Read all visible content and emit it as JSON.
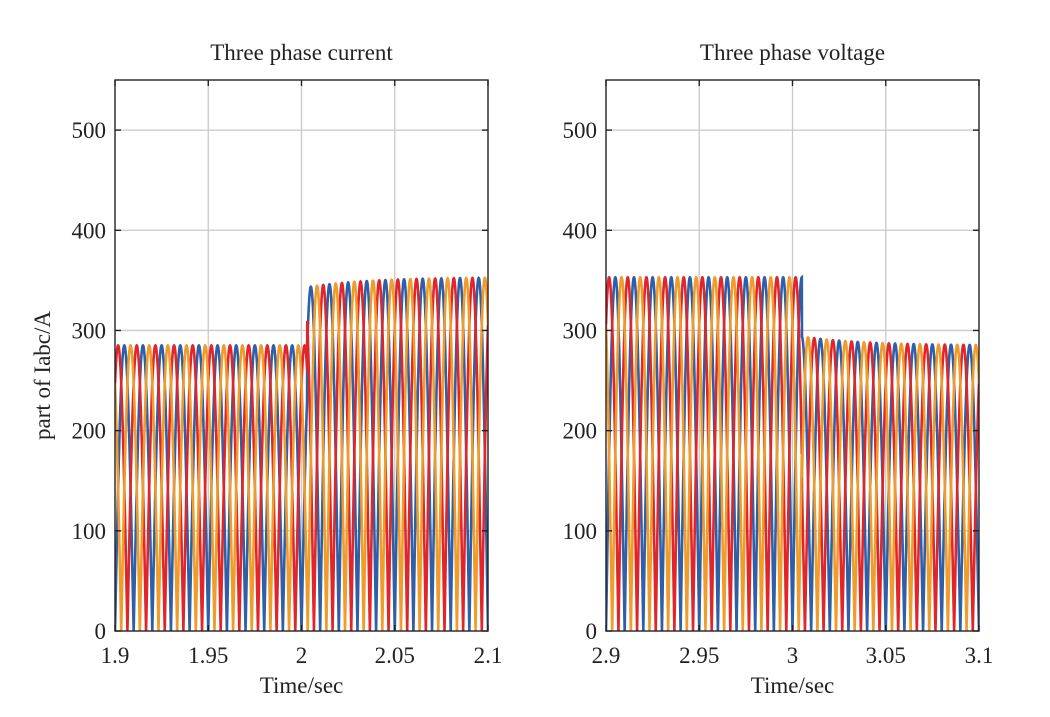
{
  "colors": {
    "phase_a": "#2f5fa6",
    "phase_b": "#e0262a",
    "phase_c": "#f09c2b",
    "grid": "#c9c9c9",
    "axes": "#222222"
  },
  "chart_data": [
    {
      "type": "line",
      "title": "Three phase current",
      "xlabel": "Time/sec",
      "ylabel": "part of Iabc/A",
      "xlim": [
        1.9,
        2.1
      ],
      "ylim": [
        0,
        550
      ],
      "xticks": [
        1.9,
        1.95,
        2.0,
        2.05,
        2.1
      ],
      "xtick_labels": [
        "1.9",
        "1.95",
        "2",
        "2.05",
        "2.1"
      ],
      "yticks": [
        0,
        100,
        200,
        300,
        400,
        500
      ],
      "ytick_labels": [
        "0",
        "100",
        "200",
        "300",
        "400",
        "500"
      ],
      "grid": true,
      "waveform": "absolute-value sinusoids, three phases",
      "frequency_hz": 50,
      "series": [
        {
          "color_key": "phase_a",
          "phase_deg": 0
        },
        {
          "color_key": "phase_b",
          "phase_deg": -120
        },
        {
          "color_key": "phase_c",
          "phase_deg": 120
        }
      ],
      "amplitude_segments": [
        {
          "from": 1.9,
          "to": 2.003,
          "amplitude": 285
        },
        {
          "from": 2.003,
          "to": 2.1,
          "amplitude_start": 343,
          "amplitude_end": 353
        }
      ]
    },
    {
      "type": "line",
      "title": "Three phase voltage",
      "xlabel": "Time/sec",
      "ylabel": "",
      "xlim": [
        2.9,
        3.1
      ],
      "ylim": [
        0,
        550
      ],
      "xticks": [
        2.9,
        2.95,
        3.0,
        3.05,
        3.1
      ],
      "xtick_labels": [
        "2.9",
        "2.95",
        "3",
        "3.05",
        "3.1"
      ],
      "yticks": [
        0,
        100,
        200,
        300,
        400,
        500
      ],
      "ytick_labels": [
        "0",
        "100",
        "200",
        "300",
        "400",
        "500"
      ],
      "grid": true,
      "waveform": "absolute-value sinusoids, three phases",
      "frequency_hz": 50,
      "series": [
        {
          "color_key": "phase_a",
          "phase_deg": 0
        },
        {
          "color_key": "phase_b",
          "phase_deg": -120
        },
        {
          "color_key": "phase_c",
          "phase_deg": 120
        }
      ],
      "amplitude_segments": [
        {
          "from": 2.9,
          "to": 3.005,
          "amplitude": 353
        },
        {
          "from": 3.005,
          "to": 3.1,
          "amplitude_start": 294,
          "amplitude_end": 285
        }
      ],
      "peak_annotation": {
        "x": 3.003,
        "y": 358
      }
    }
  ]
}
